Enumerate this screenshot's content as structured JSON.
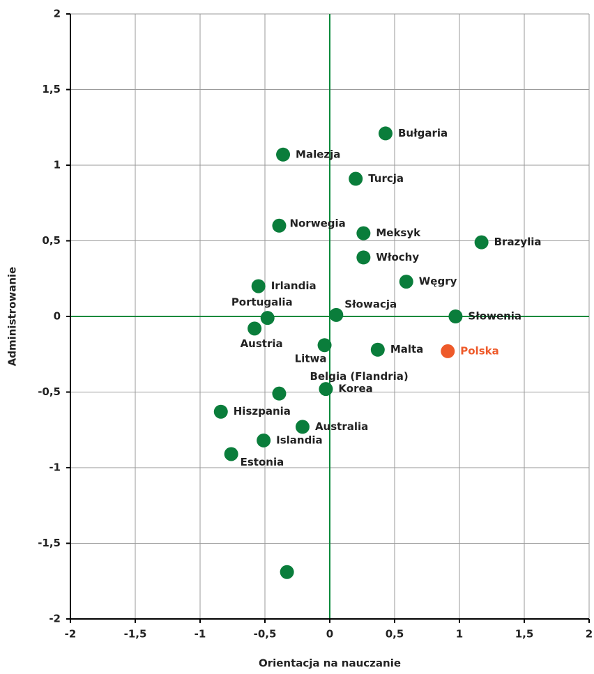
{
  "chart_data": {
    "type": "scatter",
    "x_label": "Orientacja na nauczanie",
    "y_label": "Administrowanie",
    "xlim": [
      -2,
      2
    ],
    "ylim": [
      -2,
      2
    ],
    "xticks": [
      -2,
      {
        "value": -1.5,
        "label": "-1,5"
      },
      -1,
      {
        "value": -0.5,
        "label": "-0,5"
      },
      0,
      {
        "value": 0.5,
        "label": "0,5"
      },
      1,
      {
        "value": 1.5,
        "label": "1,5"
      },
      2
    ],
    "yticks": [
      -2,
      {
        "value": -1.5,
        "label": "-1,5"
      },
      -1,
      {
        "value": -0.5,
        "label": "-0,5"
      },
      0,
      {
        "value": 0.5,
        "label": "0,5"
      },
      1,
      {
        "value": 1.5,
        "label": "1,5"
      },
      2
    ],
    "grid": true,
    "axis_line_color": "#0a8a3c",
    "series": [
      {
        "color": "#0a7d3b",
        "labels": [
          "Bułgaria",
          "Malezja",
          "Turcja",
          "Norwegia",
          "Meksyk",
          "Brazylia",
          "Włochy",
          "Węgry",
          "Irlandia",
          "Słowacja",
          "Portugalia",
          "Słowenia",
          "Austria",
          "Litwa",
          "Malta",
          "Korea",
          "Belgia (Flandria)",
          "Hiszpania",
          "Australia",
          "Islandia",
          "Estonia",
          null
        ],
        "x": [
          0.43,
          -0.36,
          0.2,
          -0.39,
          0.26,
          1.17,
          0.26,
          0.59,
          -0.55,
          0.05,
          -0.48,
          0.97,
          -0.58,
          -0.04,
          0.37,
          -0.03,
          -0.39,
          -0.84,
          -0.21,
          -0.51,
          -0.76,
          -0.33
        ],
        "y": [
          1.21,
          1.07,
          0.91,
          0.6,
          0.55,
          0.49,
          0.39,
          0.23,
          0.2,
          0.01,
          -0.01,
          0,
          -0.08,
          -0.19,
          -0.22,
          -0.48,
          -0.51,
          -0.63,
          -0.73,
          -0.82,
          -0.91,
          -1.69
        ]
      },
      {
        "color": "#ee5a2a",
        "labels": [
          "Polska"
        ],
        "x": [
          0.91
        ],
        "y": [
          -0.23
        ]
      }
    ]
  }
}
